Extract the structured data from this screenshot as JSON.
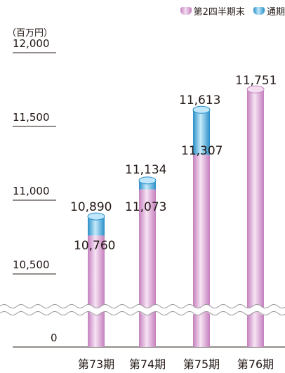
{
  "legend": {
    "q2_label": "第2四半期末",
    "fy_label": "通期",
    "q2_color": "#d9a3d2",
    "fy_color": "#4fb3e3"
  },
  "unit_label": "（百万円）",
  "chart_data": {
    "type": "bar",
    "categories": [
      "第73期",
      "第74期",
      "第75期",
      "第76期"
    ],
    "series": [
      {
        "name": "第2四半期末",
        "values": [
          10760,
          11073,
          11307,
          11751
        ]
      },
      {
        "name": "通期",
        "values": [
          10890,
          11134,
          11613,
          null
        ]
      }
    ],
    "y_ticks": [
      {
        "value": 12000,
        "label": "12,000"
      },
      {
        "value": 11500,
        "label": "11,500"
      },
      {
        "value": 11000,
        "label": "11,000"
      },
      {
        "value": 10500,
        "label": "10,500"
      },
      {
        "value": 0,
        "label": "0"
      }
    ],
    "ylim": [
      10500,
      12000
    ],
    "axis_break": true,
    "stacked_overlay": true
  }
}
